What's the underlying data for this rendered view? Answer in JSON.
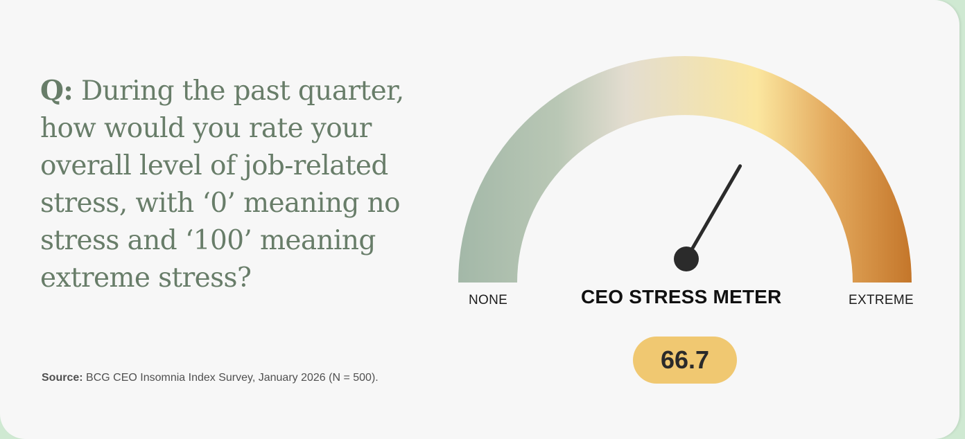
{
  "question": {
    "prefix": "Q:",
    "text": "During the past quarter, how would you rate your overall level of job-related stress, with ‘0’ meaning no stress and ‘100’ meaning extreme stress?"
  },
  "source": {
    "label": "Source:",
    "text": "BCG CEO Insomnia Index Survey, January 2026 (N = 500)."
  },
  "colors": {
    "card_background": "#f7f7f7",
    "question_text": "#687d69",
    "gauge_low": "#a3b8a8",
    "gauge_mid": "#fbe69f",
    "gauge_high": "#c4762a",
    "pill": "#f0c871",
    "needle": "#2b2b2b"
  },
  "chart_data": {
    "type": "gauge",
    "title": "CEO STRESS METER",
    "min": 0,
    "max": 100,
    "min_label": "NONE",
    "max_label": "EXTREME",
    "value": 66.7,
    "value_label": "66.7"
  }
}
